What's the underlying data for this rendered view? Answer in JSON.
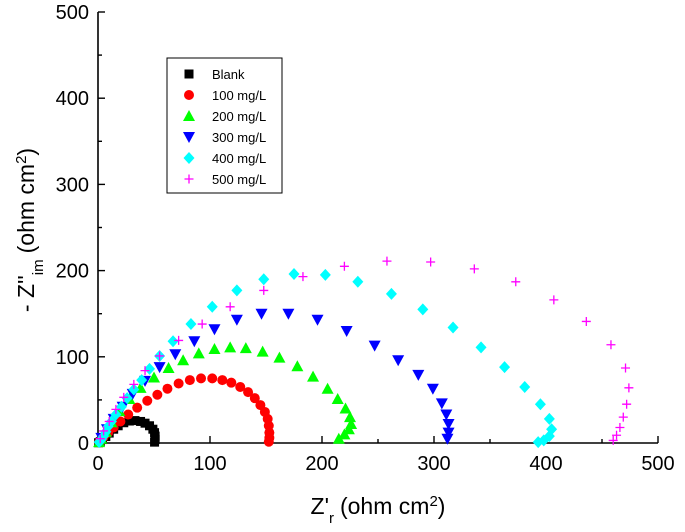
{
  "chart_data": {
    "type": "scatter",
    "title": "",
    "xlabel": {
      "main": "Z'",
      "sub": "r",
      "unit": "(ohm cm",
      "sup": "2",
      "close": ")"
    },
    "ylabel": {
      "main": "- Z''",
      "sub": "im",
      "unit": "(ohm cm",
      "sup": "2",
      "close": ")"
    },
    "xlim": [
      0,
      500
    ],
    "ylim": [
      0,
      500
    ],
    "xticks": [
      "0",
      "100",
      "200",
      "300",
      "400",
      "500"
    ],
    "yticks": [
      "0",
      "100",
      "200",
      "300",
      "400",
      "500"
    ],
    "grid": false,
    "legend_position": "upper-left",
    "series": [
      {
        "name": "Blank",
        "marker": "square",
        "color": "#000000",
        "x": [
          0.5,
          2,
          4,
          7,
          10,
          14,
          18,
          23,
          28,
          33,
          38,
          42,
          46,
          49,
          50.5,
          51,
          51,
          50.5
        ],
        "y": [
          0.3,
          1.5,
          4,
          7.5,
          11.5,
          16,
          20,
          23.5,
          25.5,
          26,
          25,
          23,
          20,
          16,
          12,
          8,
          4,
          1
        ]
      },
      {
        "name": "100 mg/L",
        "marker": "circle",
        "color": "#ff0000",
        "x": [
          1,
          2.5,
          5,
          9,
          14,
          20,
          27,
          35,
          44,
          53,
          62,
          72,
          82,
          92,
          102,
          111,
          119,
          127,
          134,
          140,
          145,
          149,
          151.5,
          152.5,
          153,
          153,
          152.5
        ],
        "y": [
          0.5,
          3,
          7,
          12,
          18,
          25,
          33,
          41,
          49,
          56,
          63,
          69,
          73,
          75,
          75,
          73,
          70,
          65,
          59,
          52,
          44,
          36,
          28,
          20,
          12,
          6,
          1.5
        ]
      },
      {
        "name": "200 mg/L",
        "marker": "triangle-up",
        "color": "#00ff00",
        "x": [
          1,
          3,
          7,
          12,
          19,
          28,
          38,
          50,
          63,
          76,
          90,
          104,
          118,
          132,
          147,
          162,
          178,
          192,
          205,
          214,
          221,
          225,
          226,
          224,
          220,
          215
        ],
        "y": [
          1,
          5,
          13,
          24,
          37,
          51,
          64,
          76,
          87,
          96,
          104,
          109,
          111,
          110,
          106,
          99,
          89,
          77,
          63,
          51,
          40,
          30,
          22,
          16,
          10,
          5
        ]
      },
      {
        "name": "300 mg/L",
        "marker": "triangle-down",
        "color": "#0000ff",
        "x": [
          3,
          8,
          14,
          22,
          31,
          42,
          55,
          69,
          86,
          104,
          124,
          146,
          170,
          196,
          222,
          247,
          268,
          286,
          299,
          307,
          311,
          313,
          313,
          312
        ],
        "y": [
          6,
          16,
          28,
          42,
          57,
          72,
          88,
          103,
          118,
          132,
          143,
          150,
          150,
          143,
          130,
          113,
          96,
          79,
          63,
          46,
          33,
          22,
          12,
          5
        ]
      },
      {
        "name": "400 mg/L",
        "marker": "diamond",
        "color": "#00ffff",
        "x": [
          1,
          3,
          5,
          7,
          9,
          12,
          16,
          21,
          26,
          32,
          39,
          46,
          55,
          67,
          83,
          102,
          124,
          148,
          175,
          203,
          232,
          262,
          290,
          317,
          342,
          363,
          381,
          395,
          403,
          405,
          403,
          398,
          393
        ],
        "y": [
          1,
          4,
          8,
          13,
          19,
          25,
          33,
          42,
          52,
          62,
          73,
          86,
          101,
          118,
          138,
          158,
          177,
          190,
          196,
          195,
          187,
          173,
          155,
          134,
          111,
          88,
          65,
          45,
          28,
          16,
          8,
          3,
          1
        ]
      },
      {
        "name": "500 mg/L",
        "marker": "plus",
        "color": "#ff00ff",
        "x": [
          2,
          5,
          10,
          16,
          23,
          32,
          42,
          55,
          72,
          93,
          118,
          148,
          183,
          220,
          258,
          297,
          336,
          373,
          407,
          436,
          458,
          471,
          474,
          472,
          469,
          466,
          463,
          460
        ],
        "y": [
          5,
          14,
          25,
          39,
          53,
          68,
          84,
          101,
          119,
          138,
          158,
          177,
          193,
          205,
          211,
          210,
          202,
          187,
          166,
          141,
          114,
          87,
          64,
          45,
          30,
          18,
          9,
          3
        ]
      }
    ]
  }
}
